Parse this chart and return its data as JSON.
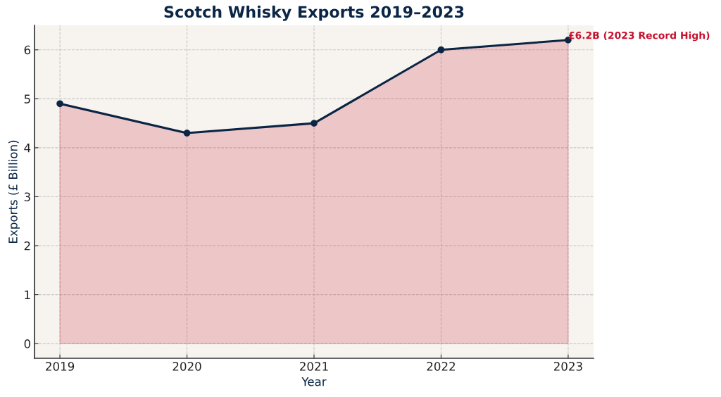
{
  "chart_data": {
    "type": "area",
    "title": "Scotch Whisky Exports 2019–2023",
    "xlabel": "Year",
    "ylabel": "Exports (£ Billion)",
    "x": [
      2019,
      2020,
      2021,
      2022,
      2023
    ],
    "series": [
      {
        "color": "#c8102e",
        "values": [
          4.9,
          4.3,
          4.5,
          6.0,
          6.2
        ]
      },
      {
        "type": "line",
        "color": "#0b2545",
        "values": [
          4.9,
          4.3,
          4.5,
          6.0,
          6.2
        ],
        "marker": "circle",
        "line_style": "solid"
      }
    ],
    "xlim": [
      2018.8,
      2023.2
    ],
    "xticks": [
      2019,
      2020,
      2021,
      2022,
      2023
    ],
    "ylim": [
      -0.3,
      6.5
    ],
    "yticks": [
      0,
      1,
      2,
      3,
      4,
      5,
      6
    ],
    "annotations": [
      {
        "text": "£6.2B (2023 Record High)",
        "x": 2023,
        "y": 6.2
      }
    ],
    "grid": true,
    "legend": false
  }
}
